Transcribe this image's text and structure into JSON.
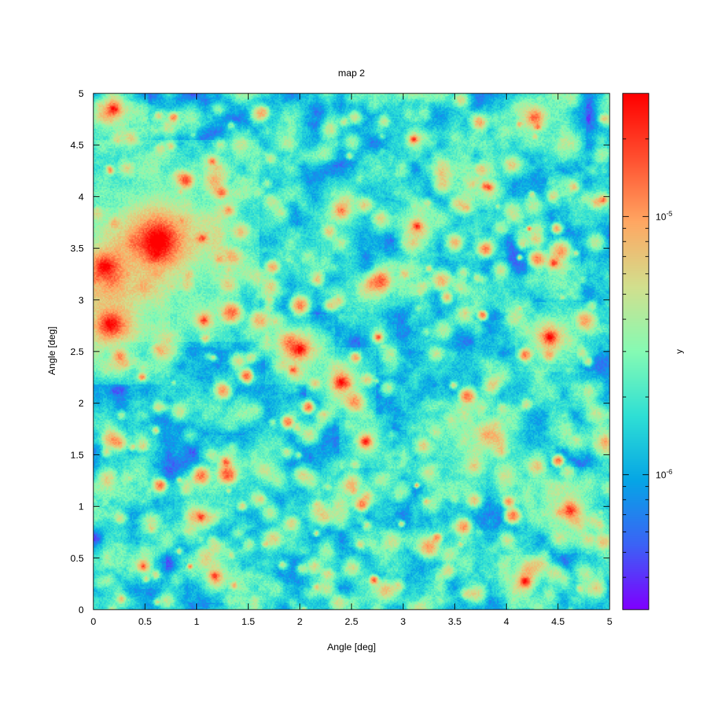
{
  "chart_data": {
    "type": "heatmap",
    "title": "map 2",
    "xlabel": "Angle [deg]",
    "ylabel": "Angle [deg]",
    "colorbar_label": "y",
    "xlim": [
      0,
      5
    ],
    "ylim": [
      0,
      5
    ],
    "x_ticks": [
      "0",
      "0.5",
      "1",
      "1.5",
      "2",
      "2.5",
      "3",
      "3.5",
      "4",
      "4.5",
      "5"
    ],
    "y_ticks": [
      "0",
      "0.5",
      "1",
      "1.5",
      "2",
      "2.5",
      "3",
      "3.5",
      "4",
      "4.5",
      "5"
    ],
    "colorbar": {
      "scale": "log",
      "range": [
        3e-07,
        3e-05
      ],
      "major_ticks": [
        {
          "value": 1e-06,
          "base": "10",
          "exp": "-6"
        },
        {
          "value": 1e-05,
          "base": "10",
          "exp": "-5"
        }
      ]
    },
    "colormap": [
      "#7f00ff",
      "#3c63f6",
      "#06a6e6",
      "#2fe0d5",
      "#86fbb4",
      "#d2e08e",
      "#ffa863",
      "#ff5030",
      "#ff0000"
    ],
    "background_level": 1.6e-06,
    "sources": [
      {
        "x": 0.62,
        "y": 3.58,
        "peak": 4e-05,
        "size": 0.12
      },
      {
        "x": 0.1,
        "y": 3.33,
        "peak": 3e-05,
        "size": 0.07
      },
      {
        "x": 0.16,
        "y": 2.76,
        "peak": 3e-05,
        "size": 0.07
      },
      {
        "x": 0.18,
        "y": 4.85,
        "peak": 2.5e-05,
        "size": 0.04
      },
      {
        "x": 4.27,
        "y": 4.78,
        "peak": 1.5e-05,
        "size": 0.06
      },
      {
        "x": 2.39,
        "y": 3.87,
        "peak": 1.2e-05,
        "size": 0.05
      },
      {
        "x": 2.39,
        "y": 2.21,
        "peak": 3e-05,
        "size": 0.04
      },
      {
        "x": 1.99,
        "y": 2.52,
        "peak": 3e-05,
        "size": 0.04
      },
      {
        "x": 4.42,
        "y": 2.65,
        "peak": 3e-05,
        "size": 0.04
      },
      {
        "x": 2.63,
        "y": 1.63,
        "peak": 3e-05,
        "size": 0.03
      },
      {
        "x": 4.62,
        "y": 0.97,
        "peak": 2e-05,
        "size": 0.05
      },
      {
        "x": 4.17,
        "y": 0.28,
        "peak": 3e-05,
        "size": 0.03
      },
      {
        "x": 3.8,
        "y": 1.7,
        "peak": 6e-06,
        "size": 0.08
      },
      {
        "x": 3.68,
        "y": 1.4,
        "peak": 5e-06,
        "size": 0.06
      },
      {
        "x": 2.67,
        "y": 3.17,
        "peak": 6e-06,
        "size": 0.05
      },
      {
        "x": 1.06,
        "y": 2.8,
        "peak": 2e-05,
        "size": 0.03
      },
      {
        "x": 1.04,
        "y": 0.9,
        "peak": 2e-05,
        "size": 0.03
      },
      {
        "x": 1.17,
        "y": 0.33,
        "peak": 2e-05,
        "size": 0.03
      },
      {
        "x": 3.1,
        "y": 4.56,
        "peak": 2e-05,
        "size": 0.025
      },
      {
        "x": 3.12,
        "y": 3.73,
        "peak": 2e-05,
        "size": 0.025
      },
      {
        "x": 4.45,
        "y": 3.37,
        "peak": 2e-05,
        "size": 0.03
      },
      {
        "x": 1.28,
        "y": 1.44,
        "peak": 1.5e-05,
        "size": 0.03
      },
      {
        "x": 2.75,
        "y": 2.65,
        "peak": 2e-05,
        "size": 0.02
      },
      {
        "x": 2.65,
        "y": 1.1,
        "peak": 6e-06,
        "size": 0.04
      },
      {
        "x": 1.05,
        "y": 3.6,
        "peak": 1.5e-05,
        "size": 0.025
      },
      {
        "x": 1.65,
        "y": 1.35,
        "peak": 4e-06,
        "size": 0.08
      },
      {
        "x": 0.65,
        "y": 2.5,
        "peak": 5e-06,
        "size": 0.05
      },
      {
        "x": 1.3,
        "y": 3.87,
        "peak": 1e-05,
        "size": 0.03
      },
      {
        "x": 3.83,
        "y": 4.1,
        "peak": 1.5e-05,
        "size": 0.025
      },
      {
        "x": 4.93,
        "y": 3.97,
        "peak": 1.5e-05,
        "size": 0.025
      },
      {
        "x": 1.93,
        "y": 2.33,
        "peak": 1.5e-05,
        "size": 0.025
      },
      {
        "x": 3.6,
        "y": 3.9,
        "peak": 6e-06,
        "size": 0.04
      },
      {
        "x": 0.48,
        "y": 0.42,
        "peak": 1.5e-05,
        "size": 0.025
      },
      {
        "x": 1.15,
        "y": 4.35,
        "peak": 1.5e-05,
        "size": 0.02
      }
    ]
  }
}
